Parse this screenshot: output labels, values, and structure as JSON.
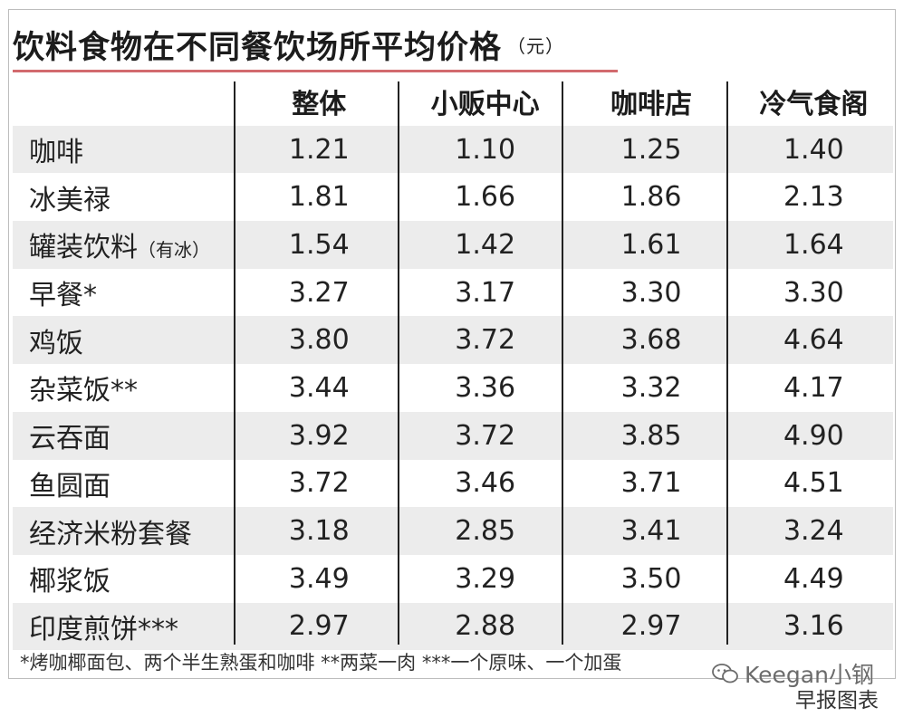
{
  "title": "饮料食物在不同餐饮场所平均价格",
  "unit": "（元）",
  "columns": [
    "",
    "整体",
    "小贩中心",
    "咖啡店",
    "冷气食阁"
  ],
  "chart_data": {
    "type": "table",
    "title": "饮料食物在不同餐饮场所平均价格",
    "unit": "（元）",
    "columns": [
      "整体",
      "小贩中心",
      "咖啡店",
      "冷气食阁"
    ],
    "rows": [
      {
        "label": "咖啡",
        "note": "",
        "values": [
          "1.21",
          "1.10",
          "1.25",
          "1.40"
        ]
      },
      {
        "label": "冰美禄",
        "note": "",
        "values": [
          "1.81",
          "1.66",
          "1.86",
          "2.13"
        ]
      },
      {
        "label": "罐装饮料",
        "note": "（有冰）",
        "values": [
          "1.54",
          "1.42",
          "1.61",
          "1.64"
        ]
      },
      {
        "label": "早餐*",
        "note": "",
        "values": [
          "3.27",
          "3.17",
          "3.30",
          "3.30"
        ]
      },
      {
        "label": "鸡饭",
        "note": "",
        "values": [
          "3.80",
          "3.72",
          "3.68",
          "4.64"
        ]
      },
      {
        "label": "杂菜饭**",
        "note": "",
        "values": [
          "3.44",
          "3.36",
          "3.32",
          "4.17"
        ]
      },
      {
        "label": "云吞面",
        "note": "",
        "values": [
          "3.92",
          "3.72",
          "3.85",
          "4.90"
        ]
      },
      {
        "label": "鱼圆面",
        "note": "",
        "values": [
          "3.72",
          "3.46",
          "3.71",
          "4.51"
        ]
      },
      {
        "label": "经济米粉套餐",
        "note": "",
        "values": [
          "3.18",
          "2.85",
          "3.41",
          "3.24"
        ]
      },
      {
        "label": "椰浆饭",
        "note": "",
        "values": [
          "3.49",
          "3.29",
          "3.50",
          "4.49"
        ]
      },
      {
        "label": "印度煎饼***",
        "note": "",
        "values": [
          "2.97",
          "2.88",
          "2.97",
          "3.16"
        ]
      }
    ]
  },
  "footnote": "*烤咖椰面包、两个半生熟蛋和咖啡 **两菜一肉 ***一个原味、一个加蛋",
  "watermark": "Keegan小钢",
  "credit": "早报图表",
  "colors": {
    "title_rule": "#d26a6e",
    "row_shade": "#ececec",
    "divider": "#222222"
  },
  "icons": {
    "watermark_icon": "wechat-icon"
  }
}
